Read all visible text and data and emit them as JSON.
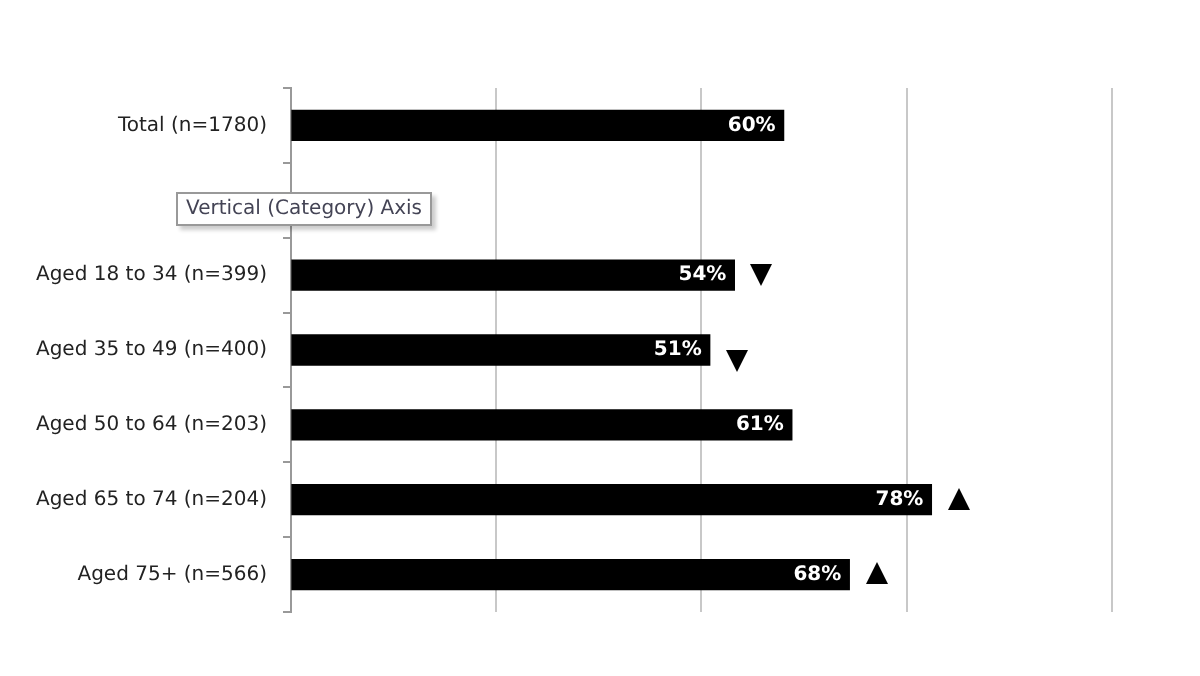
{
  "chart_data": {
    "type": "bar",
    "orientation": "horizontal",
    "categories": [
      "Total (n=1780)",
      null,
      "Aged 18 to 34 (n=399)",
      "Aged 35 to 49 (n=400)",
      "Aged 50 to 64 (n=203)",
      "Aged 65 to 74 (n=204)",
      "Aged 75+ (n=566)"
    ],
    "values": [
      60,
      null,
      54,
      51,
      61,
      78,
      68
    ],
    "value_labels": [
      "60%",
      null,
      "54%",
      "51%",
      "61%",
      "78%",
      "68%"
    ],
    "color": "#000000",
    "xlim": [
      0,
      100
    ],
    "xticks": [
      {
        "value": 0,
        "label": null
      },
      {
        "value": 25,
        "label": null
      },
      {
        "value": 50,
        "label": null
      },
      {
        "value": 75,
        "label": null
      },
      {
        "value": 100,
        "label": null
      }
    ],
    "tick_labels": "y",
    "grid": "x",
    "legend": false,
    "annotations": [
      "Vertical (Category) Axis"
    ]
  }
}
